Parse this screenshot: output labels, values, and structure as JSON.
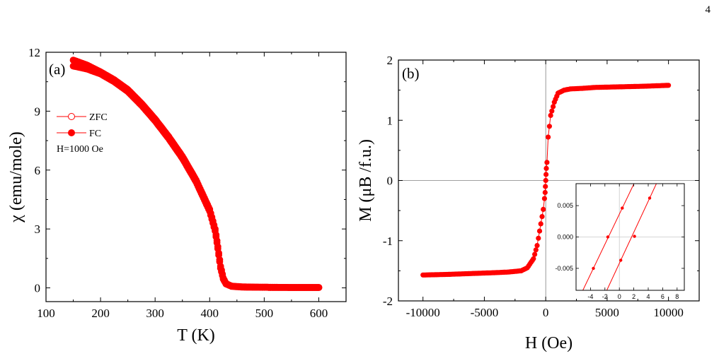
{
  "page_number": "4",
  "colors": {
    "data": "#ff0000",
    "axis": "#000000",
    "zero_line": "#7f7f7f",
    "inset_grid": "#c8c8c8"
  },
  "chart_data": [
    {
      "id": "a",
      "type": "scatter",
      "panel_label": "(a)",
      "xlabel": "T (K)",
      "ylabel": "χ (emu/mole)",
      "xlim": [
        100,
        650
      ],
      "ylim": [
        -0.7,
        12
      ],
      "xticks": [
        100,
        200,
        300,
        400,
        500,
        600
      ],
      "yticks": [
        0,
        3,
        6,
        9,
        12
      ],
      "grid": false,
      "legend": {
        "placement": "upper-left",
        "entries": [
          {
            "label": "ZFC",
            "marker": "open-circle"
          },
          {
            "label": "FC",
            "marker": "filled-circle"
          }
        ],
        "note": "H=1000 Oe"
      },
      "series": [
        {
          "name": "ZFC",
          "marker": "open-circle",
          "x": [
            150,
            175,
            200,
            225,
            250,
            275,
            300,
            325,
            350,
            375,
            400,
            410,
            415,
            420,
            425,
            430,
            440,
            460,
            500,
            550,
            600
          ],
          "y": [
            11.3,
            11.15,
            10.9,
            10.5,
            10.0,
            9.3,
            8.5,
            7.6,
            6.6,
            5.4,
            3.9,
            2.9,
            2.0,
            1.0,
            0.45,
            0.2,
            0.08,
            0.04,
            0.03,
            0.02,
            0.02
          ]
        },
        {
          "name": "FC",
          "marker": "filled-circle",
          "x": [
            150,
            175,
            200,
            225,
            250,
            275,
            300,
            325,
            350,
            375,
            400,
            410,
            415,
            420,
            425,
            430,
            440,
            460,
            500,
            550,
            600
          ],
          "y": [
            11.6,
            11.35,
            11.0,
            10.6,
            10.1,
            9.4,
            8.6,
            7.7,
            6.7,
            5.5,
            4.0,
            3.0,
            2.1,
            1.1,
            0.5,
            0.22,
            0.09,
            0.05,
            0.03,
            0.02,
            0.02
          ]
        }
      ]
    },
    {
      "id": "b",
      "type": "line",
      "panel_label": "(b)",
      "xlabel": "H (Oe)",
      "ylabel": "M (μB /f.u.)",
      "xlim": [
        -12000,
        12500
      ],
      "ylim": [
        -2,
        2
      ],
      "xticks": [
        -10000,
        -5000,
        0,
        5000,
        10000
      ],
      "xtick_labels": [
        "-10000",
        "-5000",
        "0",
        "5000",
        "10000"
      ],
      "yticks": [
        -2,
        -1,
        0,
        1,
        2
      ],
      "zero_lines": true,
      "grid": false,
      "series": [
        {
          "marker": "filled-circle",
          "x": [
            -10000,
            -8000,
            -6000,
            -4000,
            -3000,
            -2000,
            -1500,
            -1000,
            -700,
            -400,
            -200,
            -100,
            -50,
            -25,
            0,
            25,
            50,
            100,
            200,
            400,
            700,
            1000,
            1500,
            2000,
            3000,
            4000,
            6000,
            8000,
            10000
          ],
          "y": [
            -1.57,
            -1.56,
            -1.545,
            -1.53,
            -1.52,
            -1.5,
            -1.45,
            -1.3,
            -1.08,
            -0.72,
            -0.48,
            -0.3,
            -0.2,
            -0.1,
            0.0,
            0.1,
            0.2,
            0.3,
            0.72,
            1.08,
            1.3,
            1.45,
            1.5,
            1.52,
            1.53,
            1.545,
            1.555,
            1.565,
            1.58
          ]
        }
      ],
      "inset": {
        "type": "line",
        "placement": "lower-right",
        "xlim": [
          -6,
          9
        ],
        "ylim": [
          -0.0085,
          0.0085
        ],
        "xticks": [
          -4,
          -2,
          0,
          2,
          4,
          6,
          8
        ],
        "xtick_labels": [
          "-4",
          "-2",
          "0",
          "2",
          "4",
          "6",
          "8"
        ],
        "yticks": [
          -0.005,
          0,
          0.005
        ],
        "ytick_labels": [
          "-0.005",
          "0.000",
          "0.005"
        ],
        "zero_lines": true,
        "series": [
          {
            "marker": "filled-circle",
            "x": [
              -3.6,
              -1.6,
              0.4
            ],
            "y": [
              -0.005,
              0.0,
              0.0046
            ]
          },
          {
            "marker": "filled-circle",
            "x": [
              0.2,
              2.1,
              4.2
            ],
            "y": [
              -0.0037,
              0.0001,
              0.0062
            ]
          }
        ]
      }
    }
  ]
}
